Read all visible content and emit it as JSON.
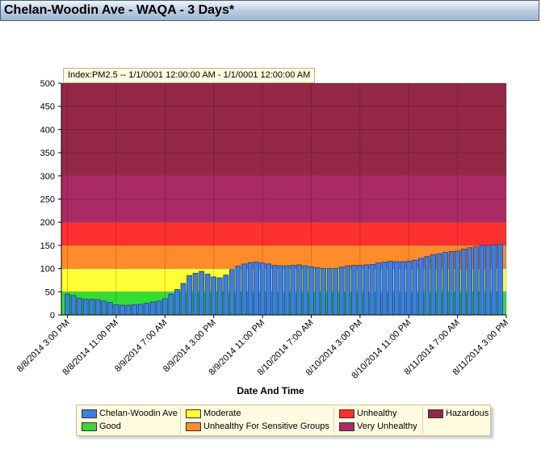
{
  "window": {
    "title": "Chelan-Woodin Ave - WAQA - 3 Days*"
  },
  "index_label": "Index:PM2.5 -- 1/1/0001 12:00:00 AM  -  1/1/0001 12:00:00 AM",
  "chart_data": {
    "type": "bar",
    "xlabel": "Date And Time",
    "ylabel": "",
    "ylim": [
      0,
      500
    ],
    "y_ticks": [
      0,
      50,
      100,
      150,
      200,
      250,
      300,
      350,
      400,
      450,
      500
    ],
    "x_ticks": [
      "8/8/2014 3:00 PM",
      "8/8/2014 11:00 PM",
      "8/9/2014 7:00 AM",
      "8/9/2014 3:00 PM",
      "8/9/2014 11:00 PM",
      "8/10/2014 7:00 AM",
      "8/10/2014 3:00 PM",
      "8/10/2014 11:00 PM",
      "8/11/2014 7:00 AM",
      "8/11/2014 3:00 PM"
    ],
    "x_range_hours": [
      -1,
      72
    ],
    "bands": [
      {
        "name": "Good",
        "from": 0,
        "to": 50,
        "color": "#33dd33"
      },
      {
        "name": "Moderate",
        "from": 50,
        "to": 100,
        "color": "#ffff33"
      },
      {
        "name": "Unhealthy For Sensitive Groups",
        "from": 100,
        "to": 150,
        "color": "#ff8c2a"
      },
      {
        "name": "Unhealthy",
        "from": 150,
        "to": 200,
        "color": "#ff3030"
      },
      {
        "name": "Very Unhealthy",
        "from": 200,
        "to": 300,
        "color": "#aa2a66"
      },
      {
        "name": "Hazardous",
        "from": 300,
        "to": 500,
        "color": "#942846"
      }
    ],
    "series": [
      {
        "name": "Chelan-Woodin Ave",
        "color": "#3d7fe0",
        "values": [
          45,
          42,
          36,
          34,
          34,
          33,
          30,
          27,
          22,
          21,
          21,
          22,
          23,
          25,
          28,
          30,
          35,
          45,
          55,
          68,
          85,
          90,
          94,
          88,
          82,
          80,
          86,
          98,
          105,
          110,
          113,
          114,
          112,
          110,
          107,
          106,
          106,
          107,
          108,
          106,
          104,
          102,
          100,
          100,
          100,
          103,
          106,
          107,
          107,
          108,
          109,
          112,
          114,
          116,
          115,
          115,
          116,
          118,
          122,
          126,
          130,
          132,
          135,
          137,
          138,
          142,
          145,
          147,
          150,
          150,
          151,
          152
        ]
      }
    ]
  },
  "legend": {
    "items": [
      {
        "label": "Chelan-Woodin Ave",
        "color": "#3d7fe0"
      },
      {
        "label": "Good",
        "color": "#33dd33"
      },
      {
        "label": "Moderate",
        "color": "#ffff33"
      },
      {
        "label": "Unhealthy For Sensitive Groups",
        "color": "#ff8c2a"
      },
      {
        "label": "Unhealthy",
        "color": "#ff3030"
      },
      {
        "label": "Very Unhealthy",
        "color": "#aa2a66"
      },
      {
        "label": "Hazardous",
        "color": "#942846"
      }
    ]
  }
}
